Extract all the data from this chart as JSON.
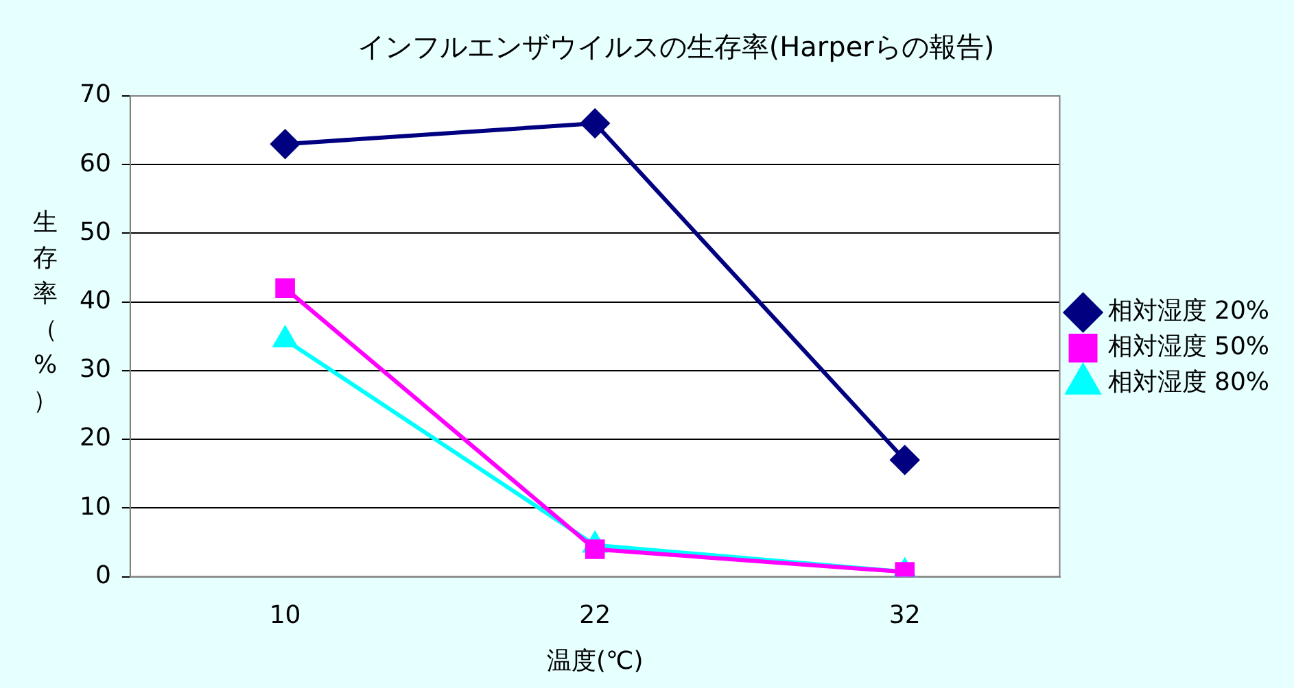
{
  "chart_data": {
    "type": "line",
    "title": "インフルエンザウイルスの生存率(Harperらの報告)",
    "xlabel": "温度(℃)",
    "ylabel": "生存率（%）",
    "categories": [
      "10",
      "22",
      "32"
    ],
    "series": [
      {
        "name": "相対湿度 20%",
        "color": "#000080",
        "marker": "diamond",
        "values": [
          63,
          66,
          17
        ]
      },
      {
        "name": "相対湿度 50%",
        "color": "#ff00ff",
        "marker": "square",
        "values": [
          42,
          4,
          0.7
        ]
      },
      {
        "name": "相対湿度 80%",
        "color": "#00ffff",
        "marker": "triangle",
        "values": [
          34.5,
          4.6,
          0.7
        ]
      }
    ],
    "ylim": [
      0,
      70
    ],
    "yticks": [
      0,
      10,
      20,
      30,
      40,
      50,
      60,
      70
    ],
    "grid": "y",
    "legend": "right",
    "line_style": "solid"
  }
}
